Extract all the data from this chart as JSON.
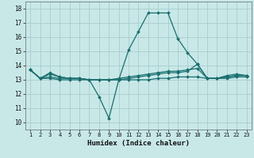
{
  "title": "",
  "xlabel": "Humidex (Indice chaleur)",
  "ylabel": "",
  "background_color": "#c8e8e8",
  "grid_color": "#aacccc",
  "line_color": "#1a6e6e",
  "xlim": [
    0.5,
    23.5
  ],
  "ylim": [
    9.5,
    18.5
  ],
  "xticks": [
    1,
    2,
    3,
    4,
    5,
    6,
    7,
    8,
    9,
    10,
    11,
    12,
    13,
    14,
    15,
    16,
    17,
    18,
    19,
    20,
    21,
    22,
    23
  ],
  "yticks": [
    10,
    11,
    12,
    13,
    14,
    15,
    16,
    17,
    18
  ],
  "series": [
    {
      "x": [
        1,
        2,
        3,
        4,
        5,
        6,
        7,
        8,
        9,
        10,
        11,
        12,
        13,
        14,
        15,
        16,
        17,
        18,
        19,
        20,
        21,
        22,
        23
      ],
      "y": [
        13.7,
        13.1,
        13.5,
        13.2,
        13.1,
        13.1,
        13.0,
        11.8,
        10.3,
        13.0,
        15.1,
        16.4,
        17.7,
        17.7,
        17.7,
        15.9,
        14.9,
        14.1,
        13.1,
        13.1,
        13.3,
        13.4,
        13.3
      ]
    },
    {
      "x": [
        1,
        2,
        3,
        4,
        5,
        6,
        7,
        8,
        9,
        10,
        11,
        12,
        13,
        14,
        15,
        16,
        17,
        18,
        19,
        20,
        21,
        22,
        23
      ],
      "y": [
        13.7,
        13.1,
        13.4,
        13.2,
        13.1,
        13.1,
        13.0,
        13.0,
        13.0,
        13.1,
        13.2,
        13.3,
        13.4,
        13.5,
        13.6,
        13.6,
        13.7,
        13.8,
        13.1,
        13.1,
        13.2,
        13.3,
        13.3
      ]
    },
    {
      "x": [
        1,
        2,
        3,
        4,
        5,
        6,
        7,
        8,
        9,
        10,
        11,
        12,
        13,
        14,
        15,
        16,
        17,
        18,
        19,
        20,
        21,
        22,
        23
      ],
      "y": [
        13.7,
        13.1,
        13.2,
        13.1,
        13.1,
        13.1,
        13.0,
        13.0,
        13.0,
        13.0,
        13.1,
        13.2,
        13.3,
        13.4,
        13.5,
        13.5,
        13.6,
        14.1,
        13.1,
        13.1,
        13.2,
        13.3,
        13.3
      ]
    },
    {
      "x": [
        1,
        2,
        3,
        4,
        5,
        6,
        7,
        8,
        9,
        10,
        11,
        12,
        13,
        14,
        15,
        16,
        17,
        18,
        19,
        20,
        21,
        22,
        23
      ],
      "y": [
        13.7,
        13.1,
        13.1,
        13.0,
        13.0,
        13.0,
        13.0,
        13.0,
        13.0,
        13.0,
        13.0,
        13.0,
        13.0,
        13.1,
        13.1,
        13.2,
        13.2,
        13.2,
        13.1,
        13.1,
        13.1,
        13.2,
        13.2
      ]
    }
  ]
}
